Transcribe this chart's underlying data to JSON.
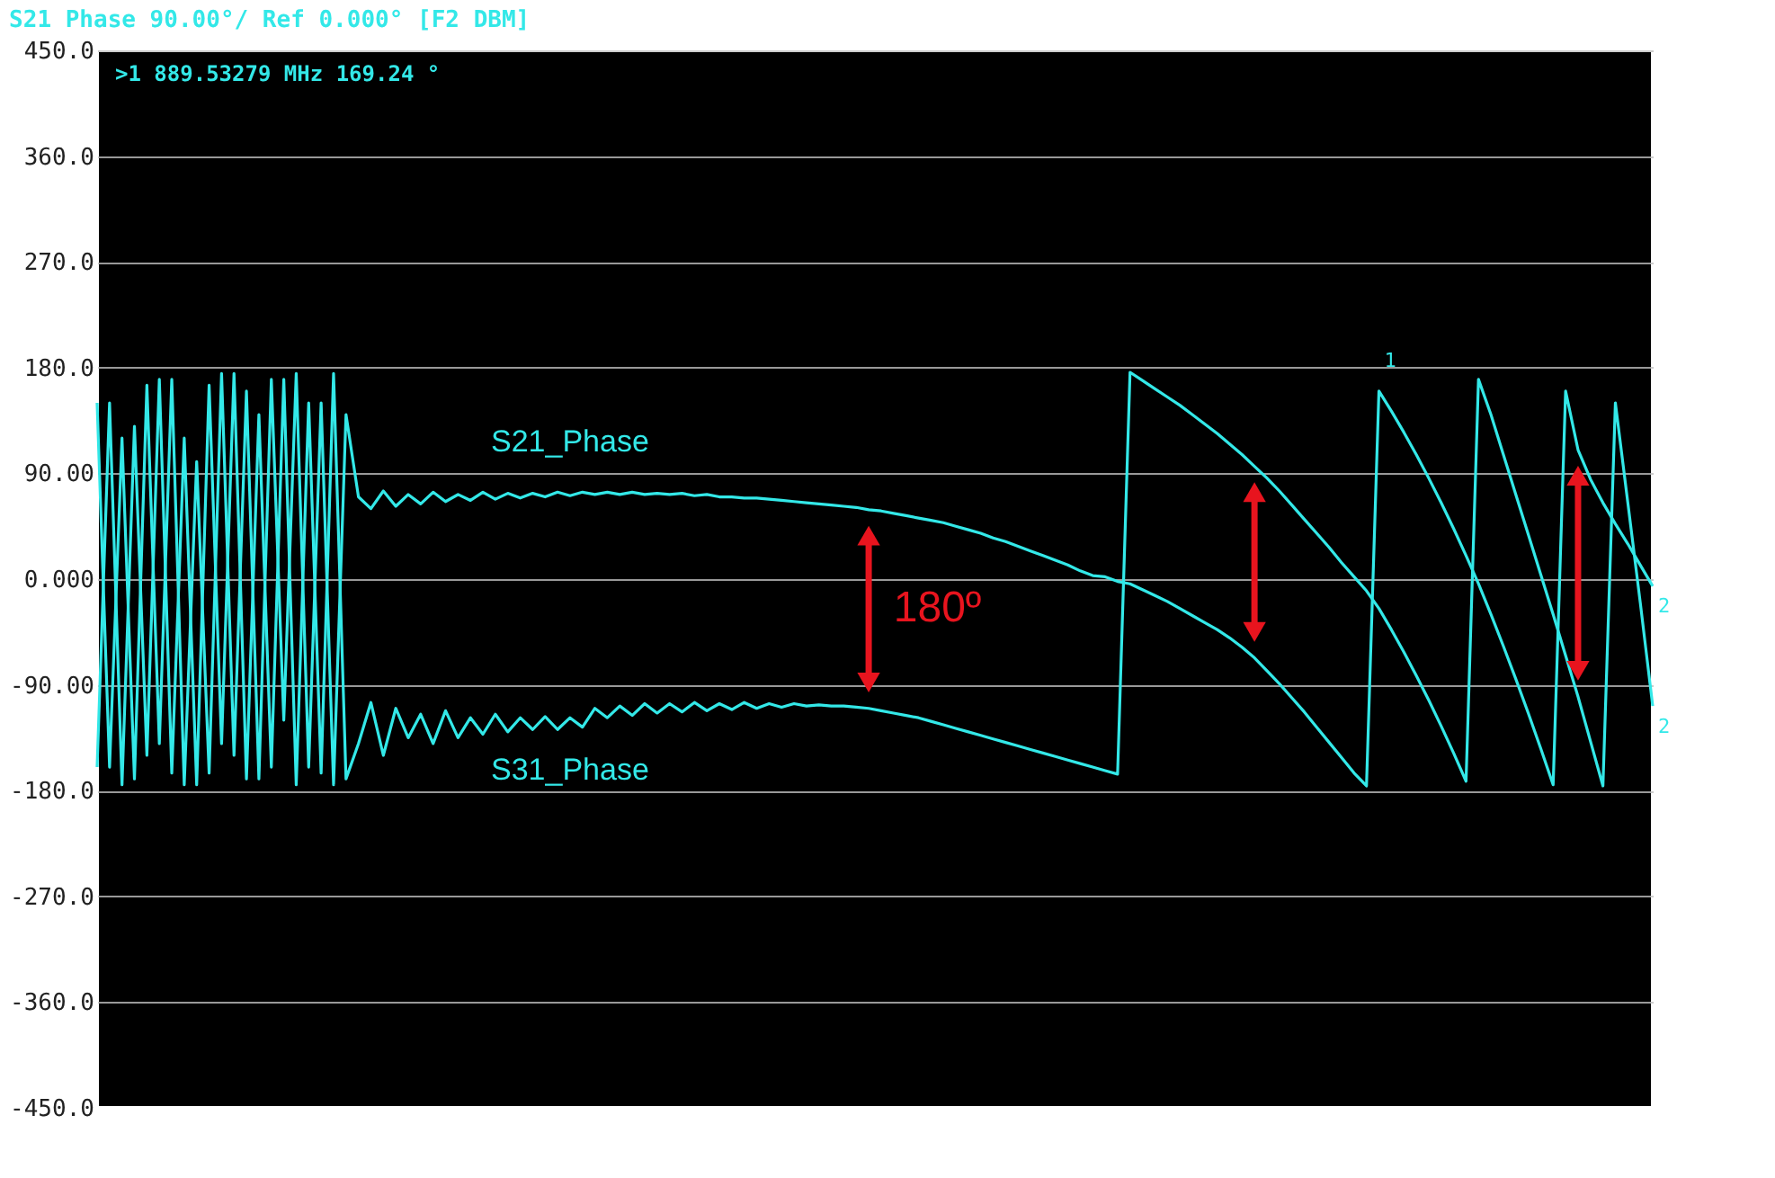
{
  "chart_data": {
    "type": "line",
    "title": "S21 Phase 90.00°/ Ref 0.000° [F2 DBM]",
    "categories": [
      null,
      null,
      null,
      null,
      null,
      null,
      null,
      null,
      null,
      null,
      null,
      null,
      null,
      null,
      null,
      null,
      null,
      null,
      null,
      null,
      null,
      null,
      null,
      null,
      null,
      null,
      null,
      null,
      null,
      null,
      null,
      null,
      null,
      null,
      null,
      null,
      null,
      null,
      null,
      null,
      null,
      null,
      null,
      null,
      null,
      null,
      null,
      null,
      null,
      null,
      null,
      null,
      null,
      null,
      null,
      null,
      null,
      null,
      null,
      null,
      null,
      null,
      null,
      null,
      null,
      null,
      null,
      null,
      null,
      null,
      null,
      null,
      null,
      null,
      null,
      null,
      null,
      null,
      null,
      null,
      null,
      null,
      null,
      null,
      null,
      null,
      null,
      null,
      null,
      null,
      null,
      null,
      null,
      null,
      null,
      null,
      null,
      null,
      null,
      null,
      null,
      null,
      null,
      null,
      null,
      null,
      null,
      null,
      null,
      null,
      null,
      null,
      null,
      null,
      null,
      null,
      null,
      null,
      null,
      null,
      null,
      null,
      null,
      null,
      null,
      null
    ],
    "series": [
      {
        "name": "S21_Phase",
        "color": "#33e8e8",
        "values": [
          150,
          -160,
          120,
          -170,
          165,
          -140,
          170,
          -175,
          100,
          -165,
          175,
          -150,
          160,
          -170,
          170,
          -120,
          175,
          -160,
          150,
          -175,
          140,
          70,
          60,
          75,
          62,
          72,
          64,
          74,
          66,
          72,
          67,
          74,
          68,
          73,
          69,
          73,
          70,
          74,
          71,
          74,
          72,
          74,
          72,
          74,
          72,
          73,
          72,
          73,
          71,
          72,
          70,
          70,
          69,
          69,
          68,
          67,
          66,
          65,
          64,
          63,
          62,
          61,
          59,
          58,
          56,
          54,
          52,
          50,
          48,
          45,
          42,
          39,
          35,
          32,
          28,
          24,
          20,
          16,
          12,
          7,
          3,
          2,
          -2,
          -4,
          -9,
          -14,
          -19,
          -25,
          -31,
          -37,
          -43,
          -50,
          -58,
          -67,
          -78,
          -89,
          -101,
          -113,
          -126,
          -139,
          -152,
          -165,
          -176,
          160,
          143,
          125,
          106,
          86,
          65,
          43,
          20,
          -4,
          -30,
          -57,
          -85,
          -114,
          -144,
          -175,
          160,
          110,
          85,
          65,
          47,
          30,
          12,
          -6
        ]
      },
      {
        "name": "S31_Phase",
        "color": "#33e8e8",
        "values": [
          -160,
          150,
          -175,
          130,
          -150,
          170,
          -165,
          120,
          -175,
          165,
          -140,
          175,
          -170,
          140,
          -160,
          170,
          -175,
          150,
          -165,
          175,
          -170,
          -140,
          -105,
          -150,
          -110,
          -135,
          -115,
          -140,
          -112,
          -135,
          -118,
          -132,
          -115,
          -130,
          -118,
          -128,
          -117,
          -128,
          -118,
          -126,
          -110,
          -118,
          -108,
          -116,
          -106,
          -114,
          -106,
          -113,
          -105,
          -112,
          -106,
          -111,
          -105,
          -110,
          -106,
          -109,
          -106,
          -108,
          -107,
          -108,
          -108,
          -109,
          -110,
          -112,
          -114,
          -116,
          -118,
          -121,
          -124,
          -127,
          -130,
          -133,
          -136,
          -139,
          -142,
          -145,
          -148,
          -151,
          -154,
          -157,
          -160,
          -163,
          -166,
          176,
          169,
          162,
          155,
          148,
          140,
          132,
          124,
          115,
          106,
          96,
          86,
          75,
          63,
          51,
          39,
          27,
          14,
          2,
          -10,
          -25,
          -43,
          -62,
          -82,
          -103,
          -125,
          -148,
          -172,
          170,
          140,
          106,
          72,
          38,
          4,
          -30,
          -65,
          -100,
          -138,
          -176,
          150,
          65,
          -20,
          -108
        ]
      }
    ],
    "ylim": [
      -450,
      450
    ],
    "yticks": [
      {
        "value": 450,
        "label": "450.0"
      },
      {
        "value": 360,
        "label": "360.0"
      },
      {
        "value": 270,
        "label": "270.0"
      },
      {
        "value": 180,
        "label": "180.0"
      },
      {
        "value": 90,
        "label": "90.00"
      },
      {
        "value": 0,
        "label": "0.000"
      },
      {
        "value": -90,
        "label": "-90.00"
      },
      {
        "value": -180,
        "label": "-180.0"
      },
      {
        "value": -270,
        "label": "-270.0"
      },
      {
        "value": -360,
        "label": "-360.0"
      },
      {
        "value": -450,
        "label": "-450.0"
      }
    ],
    "grid": "y",
    "legend": false,
    "tick_labels": "y",
    "line_style": "solid",
    "marker": "none",
    "annotations": [
      ">1  889.53279 MHz  169.24 °",
      "180º",
      "1",
      "2",
      "2"
    ]
  }
}
